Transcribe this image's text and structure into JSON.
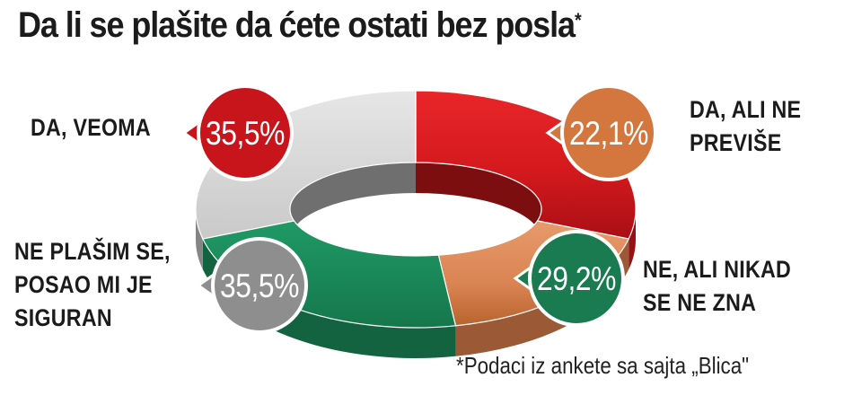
{
  "title": "Da li se plašite da ćete ostati bez posla",
  "title_mark": "*",
  "source_note": "*Podaci iz ankete sa sajta „Blica\"",
  "chart_data": {
    "type": "pie",
    "style": "3d-donut",
    "title": "Da li se plašite da ćete ostati bez posla",
    "legend": "none",
    "slices": [
      {
        "label": "DA, VEOMA",
        "value": 35.5,
        "display": "35,5%",
        "color": "#d1171b"
      },
      {
        "label": "DA, ALI NE PREVIŠE",
        "value": 22.1,
        "display": "22,1%",
        "color": "#d97c4a"
      },
      {
        "label": "NE, ALI NIKAD SE NE ZNA",
        "value": 29.2,
        "display": "29,2%",
        "color": "#1a8a5a"
      },
      {
        "label": "NE PLAŠIM SE, POSAO MI JE SIGURAN",
        "value": 35.5,
        "display": "35,5%",
        "color": "#b9b9b9"
      }
    ]
  },
  "colors": {
    "badge_red": "#c8151b",
    "badge_orange": "#d3773f",
    "badge_green": "#1a7a50",
    "badge_gray": "#8e8e8e"
  }
}
